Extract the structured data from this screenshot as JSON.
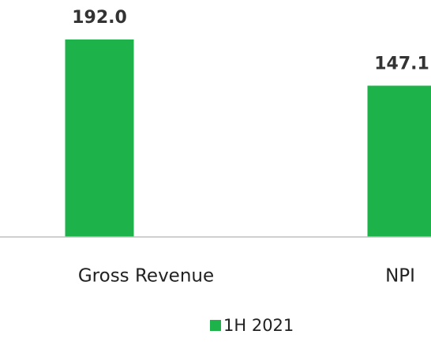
{
  "chart_data": {
    "type": "bar",
    "categories": [
      "Gross Revenue",
      "NPI"
    ],
    "series": [
      {
        "name": "1H 2021",
        "color": "#1db34a",
        "values": [
          192.0,
          147.1
        ],
        "value_labels": [
          "192.0",
          "147.1"
        ]
      }
    ],
    "ylim": [
      0,
      200
    ]
  }
}
